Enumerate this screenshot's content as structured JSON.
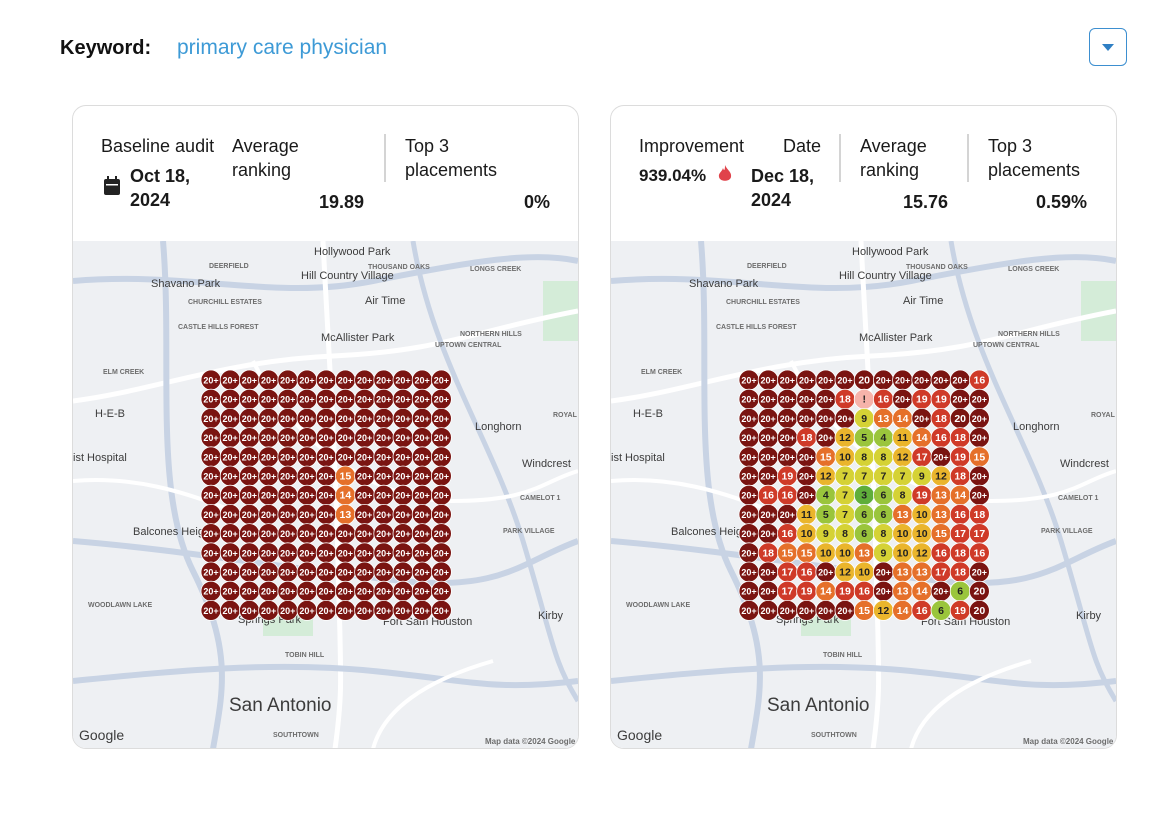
{
  "header": {
    "keyword_label": "Keyword:",
    "keyword": "primary care physician"
  },
  "map_labels": [
    "Hollywood Park",
    "Hill Country Village",
    "Shavano Park",
    "DEERFIELD",
    "THOUSAND OAKS",
    "LONGS CREEK",
    "Air Time",
    "McAllister Park",
    "NORTHERN HILLS",
    "UPTOWN CENTRAL",
    "CHURCHILL ESTATES",
    "CASTLE HILLS FOREST",
    "ELM CREEK",
    "H-E-B",
    "ist Hospital",
    "ROYAL",
    "Longhorn",
    "Windcrest",
    "CAMELOT 1",
    "PARK VILLAGE",
    "Balcones Heights",
    "WOODLAWN LAKE",
    "Springs Park",
    "Fort Sam Houston",
    "Kirby",
    "TOBIN HILL",
    "San Antonio",
    "SOUTHTOWN",
    "Google",
    "Map data ©2024 Google"
  ],
  "panels": [
    {
      "audit_label": "Baseline audit",
      "date": "Oct 18, 2024",
      "avg_label": "Average ranking",
      "avg": 19.89,
      "top3_label": "Top 3 placements",
      "top3": "0%",
      "grid": [
        [
          "20+",
          "20+",
          "20+",
          "20+",
          "20+",
          "20+",
          "20+",
          "20+",
          "20+",
          "20+",
          "20+",
          "20+",
          "20+"
        ],
        [
          "20+",
          "20+",
          "20+",
          "20+",
          "20+",
          "20+",
          "20+",
          "20+",
          "20+",
          "20+",
          "20+",
          "20+",
          "20+"
        ],
        [
          "20+",
          "20+",
          "20+",
          "20+",
          "20+",
          "20+",
          "20+",
          "20+",
          "20+",
          "20+",
          "20+",
          "20+",
          "20+"
        ],
        [
          "20+",
          "20+",
          "20+",
          "20+",
          "20+",
          "20+",
          "20+",
          "20+",
          "20+",
          "20+",
          "20+",
          "20+",
          "20+"
        ],
        [
          "20+",
          "20+",
          "20+",
          "20+",
          "20+",
          "20+",
          "20+",
          "20+",
          "20+",
          "20+",
          "20+",
          "20+",
          "20+"
        ],
        [
          "20+",
          "20+",
          "20+",
          "20+",
          "20+",
          "20+",
          "20+",
          15,
          "20+",
          "20+",
          "20+",
          "20+",
          "20+"
        ],
        [
          "20+",
          "20+",
          "20+",
          "20+",
          "20+",
          "20+",
          "20+",
          14,
          "20+",
          "20+",
          "20+",
          "20+",
          "20+"
        ],
        [
          "20+",
          "20+",
          "20+",
          "20+",
          "20+",
          "20+",
          "20+",
          13,
          "20+",
          "20+",
          "20+",
          "20+",
          "20+"
        ],
        [
          "20+",
          "20+",
          "20+",
          "20+",
          "20+",
          "20+",
          "20+",
          "20+",
          "20+",
          "20+",
          "20+",
          "20+",
          "20+"
        ],
        [
          "20+",
          "20+",
          "20+",
          "20+",
          "20+",
          "20+",
          "20+",
          "20+",
          "20+",
          "20+",
          "20+",
          "20+",
          "20+"
        ],
        [
          "20+",
          "20+",
          "20+",
          "20+",
          "20+",
          "20+",
          "20+",
          "20+",
          "20+",
          "20+",
          "20+",
          "20+",
          "20+"
        ],
        [
          "20+",
          "20+",
          "20+",
          "20+",
          "20+",
          "20+",
          "20+",
          "20+",
          "20+",
          "20+",
          "20+",
          "20+",
          "20+"
        ],
        [
          "20+",
          "20+",
          "20+",
          "20+",
          "20+",
          "20+",
          "20+",
          "20+",
          "20+",
          "20+",
          "20+",
          "20+",
          "20+"
        ]
      ]
    },
    {
      "improvement_label": "Improvement",
      "improvement": "939.04%",
      "date_label": "Date",
      "date": "Dec 18, 2024",
      "avg_label": "Average ranking",
      "avg": 15.76,
      "top3_label": "Top 3 placements",
      "top3": "0.59%",
      "grid": [
        [
          "20+",
          "20+",
          "20+",
          "20+",
          "20+",
          "20+",
          20,
          "20+",
          "20+",
          "20+",
          "20+",
          "20+",
          16
        ],
        [
          "20+",
          "20+",
          "20+",
          "20+",
          "20+",
          18,
          "!",
          16,
          "20+",
          19,
          19,
          "20+",
          "20+"
        ],
        [
          "20+",
          "20+",
          "20+",
          "20+",
          "20+",
          "20+",
          9,
          13,
          14,
          "20+",
          18,
          20,
          "20+"
        ],
        [
          "20+",
          "20+",
          "20+",
          18,
          "20+",
          12,
          5,
          4,
          11,
          14,
          16,
          18,
          "20+"
        ],
        [
          "20+",
          "20+",
          "20+",
          "20+",
          15,
          10,
          8,
          8,
          12,
          17,
          "20+",
          19,
          15
        ],
        [
          "20+",
          "20+",
          19,
          "20+",
          12,
          7,
          7,
          7,
          7,
          9,
          12,
          18,
          "20+"
        ],
        [
          "20+",
          16,
          16,
          "20+",
          4,
          7,
          3,
          6,
          8,
          19,
          13,
          14,
          "20+"
        ],
        [
          "20+",
          "20+",
          "20+",
          11,
          5,
          7,
          6,
          6,
          13,
          10,
          13,
          16,
          18
        ],
        [
          "20+",
          "20+",
          16,
          10,
          9,
          8,
          6,
          8,
          10,
          10,
          15,
          17,
          17
        ],
        [
          "20+",
          18,
          15,
          15,
          10,
          10,
          13,
          9,
          10,
          12,
          16,
          18,
          16
        ],
        [
          "20+",
          "20+",
          17,
          16,
          "20+",
          12,
          10,
          "20+",
          13,
          13,
          17,
          18,
          "20+"
        ],
        [
          "20+",
          "20+",
          17,
          19,
          14,
          19,
          16,
          "20+",
          13,
          14,
          "20+",
          6,
          20
        ],
        [
          "20+",
          "20+",
          "20+",
          "20+",
          "20+",
          "20+",
          15,
          12,
          14,
          16,
          6,
          19,
          20
        ]
      ]
    }
  ]
}
